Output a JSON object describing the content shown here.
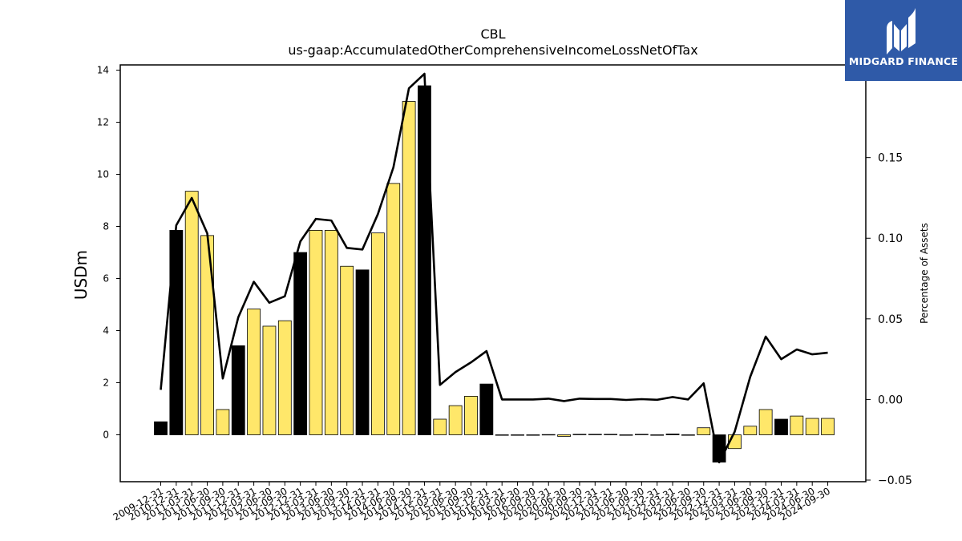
{
  "chart_data": {
    "type": "bar",
    "title": "CBL",
    "subtitle": "us-gaap:AccumulatedOtherComprehensiveIncomeLossNetOfTax",
    "ylabel": "USDm",
    "ylabel_right": "Percentage of Assets",
    "ylim": [
      -1.8,
      14.2
    ],
    "ylim_right": [
      -0.051,
      0.2075
    ],
    "yticks": [
      0,
      2,
      4,
      6,
      8,
      10,
      12,
      14
    ],
    "yticks_right": [
      -0.05,
      0.0,
      0.05,
      0.1,
      0.15,
      0.2
    ],
    "yticks_right_labels": [
      "−0.05",
      "0.00",
      "0.05",
      "0.10",
      "0.15",
      "0.20"
    ],
    "grid": false,
    "categories": [
      "2009-12-31",
      "2010-12-31",
      "2011-03-31",
      "2011-06-30",
      "2011-09-30",
      "2011-12-31",
      "2012-03-31",
      "2012-06-30",
      "2012-09-30",
      "2012-12-31",
      "2013-03-31",
      "2013-06-30",
      "2013-09-30",
      "2013-12-31",
      "2014-03-31",
      "2014-06-30",
      "2014-09-30",
      "2014-12-31",
      "2015-03-31",
      "2015-06-30",
      "2015-09-30",
      "2015-12-31",
      "2016-03-31",
      "2016-06-30",
      "2016-09-30",
      "2020-03-31",
      "2020-06-30",
      "2020-09-30",
      "2020-12-31",
      "2021-03-31",
      "2021-06-30",
      "2021-09-30",
      "2021-12-31",
      "2022-03-31",
      "2022-06-30",
      "2022-09-30",
      "2022-12-31",
      "2023-03-31",
      "2023-06-30",
      "2023-09-30",
      "2023-12-31",
      "2024-03-31",
      "2024-06-30",
      "2024-09-30"
    ],
    "series": [
      {
        "type": "bar",
        "values": [
          0.5,
          7.85,
          9.35,
          7.65,
          0.97,
          3.42,
          4.83,
          4.17,
          4.38,
          7.0,
          7.85,
          7.85,
          6.47,
          6.33,
          7.75,
          9.65,
          12.8,
          13.4,
          0.6,
          1.12,
          1.48,
          1.95,
          -0.02,
          -0.02,
          -0.02,
          0.01,
          -0.06,
          0.02,
          0.02,
          0.02,
          -0.02,
          0.02,
          -0.02,
          0.03,
          -0.02,
          0.27,
          -1.05,
          -0.53,
          0.33,
          0.97,
          0.6,
          0.72,
          0.63,
          0.63
        ],
        "colors": [
          "#000000",
          "#000000",
          "#ffe76a",
          "#ffe76a",
          "#ffe76a",
          "#000000",
          "#ffe76a",
          "#ffe76a",
          "#ffe76a",
          "#000000",
          "#ffe76a",
          "#ffe76a",
          "#ffe76a",
          "#000000",
          "#ffe76a",
          "#ffe76a",
          "#ffe76a",
          "#000000",
          "#ffe76a",
          "#ffe76a",
          "#ffe76a",
          "#000000",
          "#ffe76a",
          "#ffe76a",
          "#ffe76a",
          "#000000",
          "#ffe76a",
          "#ffe76a",
          "#ffe76a",
          "#000000",
          "#ffe76a",
          "#ffe76a",
          "#ffe76a",
          "#000000",
          "#ffe76a",
          "#ffe76a",
          "#000000",
          "#ffe76a",
          "#ffe76a",
          "#ffe76a",
          "#000000",
          "#ffe76a",
          "#ffe76a",
          "#ffe76a"
        ]
      },
      {
        "type": "line",
        "axis": "right",
        "color": "#000000",
        "values": [
          0.006,
          0.108,
          0.125,
          0.103,
          0.013,
          0.051,
          0.073,
          0.06,
          0.064,
          0.098,
          0.112,
          0.111,
          0.094,
          0.093,
          0.115,
          0.144,
          0.193,
          0.202,
          0.009,
          0.017,
          0.023,
          0.03,
          0.0,
          0.0,
          0.0,
          0.0005,
          -0.001,
          0.0005,
          0.0003,
          0.0003,
          -0.0003,
          0.0002,
          -0.0002,
          0.0015,
          0.0,
          0.01,
          -0.039,
          -0.02,
          0.014,
          0.039,
          0.025,
          0.031,
          0.028,
          0.029
        ]
      }
    ]
  },
  "logo": {
    "text": "MIDGARD FINANCE",
    "background": "#2f5aa8"
  }
}
